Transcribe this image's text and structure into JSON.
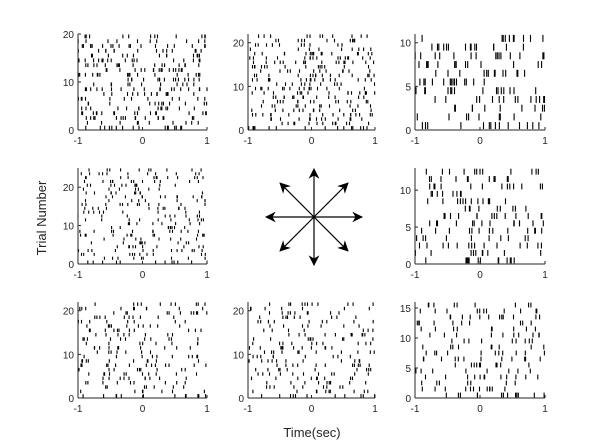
{
  "figure": {
    "xlabel": "Time(sec)",
    "ylabel": "Trial Number"
  },
  "chart_data": [
    {
      "type": "raster",
      "panel": "top-left",
      "direction": "up-left",
      "xlim": [
        -1,
        1
      ],
      "ylim": [
        0,
        20
      ],
      "trials": 20,
      "xticks": [
        "-1",
        "0",
        "1"
      ],
      "yticks": [
        "0",
        "10",
        "20"
      ],
      "spikes_per_trial_approx": 14
    },
    {
      "type": "raster",
      "panel": "top-center",
      "direction": "up",
      "xlim": [
        -1,
        1
      ],
      "ylim": [
        0,
        22
      ],
      "trials": 22,
      "xticks": [
        "-1",
        "0",
        "1"
      ],
      "yticks": [
        "0",
        "10",
        "20"
      ],
      "spikes_per_trial_approx": 13
    },
    {
      "type": "raster",
      "panel": "top-right",
      "direction": "up-right",
      "xlim": [
        -1,
        1
      ],
      "ylim": [
        0,
        11
      ],
      "trials": 11,
      "xticks": [
        "-1",
        "0",
        "1"
      ],
      "yticks": [
        "0",
        "5",
        "10"
      ],
      "spikes_per_trial_approx": 12
    },
    {
      "type": "raster",
      "panel": "middle-left",
      "direction": "left",
      "xlim": [
        -1,
        1
      ],
      "ylim": [
        0,
        25
      ],
      "trials": 25,
      "xticks": [
        "-1",
        "0",
        "1"
      ],
      "yticks": [
        "0",
        "10",
        "20"
      ],
      "spikes_per_trial_approx": 10
    },
    {
      "type": "raster",
      "panel": "middle-right",
      "direction": "right",
      "xlim": [
        -1,
        1
      ],
      "ylim": [
        0,
        13
      ],
      "trials": 13,
      "xticks": [
        "-1",
        "0",
        "1"
      ],
      "yticks": [
        "0",
        "5",
        "10"
      ],
      "spikes_per_trial_approx": 11
    },
    {
      "type": "raster",
      "panel": "bottom-left",
      "direction": "down-left",
      "xlim": [
        -1,
        1
      ],
      "ylim": [
        0,
        22
      ],
      "trials": 22,
      "xticks": [
        "-1",
        "0",
        "1"
      ],
      "yticks": [
        "0",
        "10",
        "20"
      ],
      "spikes_per_trial_approx": 10
    },
    {
      "type": "raster",
      "panel": "bottom-center",
      "direction": "down",
      "xlim": [
        -1,
        1
      ],
      "ylim": [
        0,
        22
      ],
      "trials": 22,
      "xticks": [
        "-1",
        "0",
        "1"
      ],
      "yticks": [
        "0",
        "10",
        "20"
      ],
      "spikes_per_trial_approx": 9
    },
    {
      "type": "raster",
      "panel": "bottom-right",
      "direction": "down-right",
      "xlim": [
        -1,
        1
      ],
      "ylim": [
        0,
        16
      ],
      "trials": 16,
      "xticks": [
        "-1",
        "0",
        "1"
      ],
      "yticks": [
        "0",
        "5",
        "10",
        "15"
      ],
      "spikes_per_trial_approx": 10
    }
  ],
  "direction_diagram": {
    "arrows": [
      "right",
      "up-right",
      "up",
      "up-left",
      "left",
      "down-left",
      "down",
      "down-right"
    ]
  },
  "colors": {
    "spike": "#000000",
    "axis": "#262626",
    "arrow": "#000000",
    "background": "#ffffff"
  }
}
